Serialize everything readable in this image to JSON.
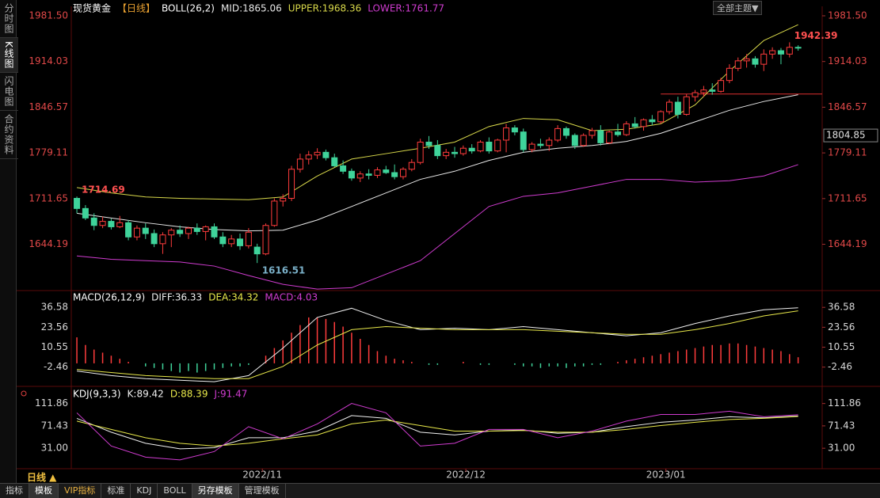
{
  "sidebar": [
    "分时图",
    "K线图",
    "闪电图",
    "合约资料"
  ],
  "top_menu": "全部主题▼",
  "period_button": "日线 ▲",
  "toolbar": [
    "指标",
    "模板",
    "VIP指标",
    "标准",
    "KDJ",
    "BOLL",
    "另存模板",
    "管理模板"
  ],
  "chart_data": [
    {
      "type": "candlestick",
      "title": "现货黄金",
      "period": "【日线】",
      "indicator": "BOLL(26,2)",
      "up_color": "#ff3c3c",
      "down_color": "#3fd39a",
      "xlim": [
        -0.65,
        86.8
      ],
      "ylim": [
        1577,
        1995.5
      ],
      "yticks": [
        {
          "value": 1981.5,
          "label": "1981.50"
        },
        {
          "value": 1914.03,
          "label": "1914.03"
        },
        {
          "value": 1846.57,
          "label": "1846.57"
        },
        {
          "value": 1779.11,
          "label": "1779.11"
        },
        {
          "value": 1711.65,
          "label": "1711.65"
        },
        {
          "value": 1644.19,
          "label": "1644.19"
        }
      ],
      "candles": [
        [
          1712,
          1714.69,
          1690,
          1697
        ],
        [
          1697,
          1702,
          1680,
          1683
        ],
        [
          1683,
          1690,
          1665,
          1672
        ],
        [
          1672,
          1685,
          1668,
          1678
        ],
        [
          1678,
          1682,
          1666,
          1670
        ],
        [
          1670,
          1686,
          1668,
          1676
        ],
        [
          1676,
          1680,
          1650,
          1655
        ],
        [
          1655,
          1672,
          1650,
          1668
        ],
        [
          1668,
          1675,
          1652,
          1660
        ],
        [
          1660,
          1666,
          1640,
          1645
        ],
        [
          1645,
          1662,
          1630,
          1658
        ],
        [
          1658,
          1668,
          1640,
          1665
        ],
        [
          1665,
          1672,
          1655,
          1660
        ],
        [
          1660,
          1670,
          1652,
          1668
        ],
        [
          1668,
          1675,
          1658,
          1663
        ],
        [
          1663,
          1672,
          1650,
          1670
        ],
        [
          1670,
          1675,
          1652,
          1655
        ],
        [
          1655,
          1662,
          1640,
          1645
        ],
        [
          1645,
          1658,
          1640,
          1652
        ],
        [
          1652,
          1660,
          1636,
          1642
        ],
        [
          1642,
          1668,
          1638,
          1662
        ],
        [
          1640,
          1645,
          1616.51,
          1630
        ],
        [
          1630,
          1675,
          1628,
          1672
        ],
        [
          1672,
          1712,
          1670,
          1708
        ],
        [
          1708,
          1718,
          1700,
          1712
        ],
        [
          1712,
          1760,
          1708,
          1755
        ],
        [
          1755,
          1778,
          1750,
          1770
        ],
        [
          1770,
          1782,
          1762,
          1776
        ],
        [
          1776,
          1786,
          1770,
          1780
        ],
        [
          1780,
          1784,
          1768,
          1772
        ],
        [
          1772,
          1778,
          1758,
          1760
        ],
        [
          1760,
          1768,
          1748,
          1752
        ],
        [
          1752,
          1756,
          1738,
          1742
        ],
        [
          1742,
          1752,
          1736,
          1748
        ],
        [
          1748,
          1755,
          1740,
          1746
        ],
        [
          1746,
          1758,
          1742,
          1754
        ],
        [
          1754,
          1760,
          1748,
          1750
        ],
        [
          1750,
          1762,
          1740,
          1744
        ],
        [
          1744,
          1758,
          1740,
          1755
        ],
        [
          1755,
          1770,
          1752,
          1765
        ],
        [
          1765,
          1800,
          1762,
          1795
        ],
        [
          1795,
          1804,
          1785,
          1790
        ],
        [
          1790,
          1798,
          1770,
          1775
        ],
        [
          1775,
          1785,
          1770,
          1780
        ],
        [
          1780,
          1788,
          1772,
          1778
        ],
        [
          1778,
          1790,
          1775,
          1786
        ],
        [
          1786,
          1792,
          1778,
          1782
        ],
        [
          1782,
          1798,
          1780,
          1795
        ],
        [
          1795,
          1802,
          1778,
          1782
        ],
        [
          1782,
          1800,
          1780,
          1798
        ],
        [
          1798,
          1822,
          1780,
          1816
        ],
        [
          1816,
          1820,
          1805,
          1810
        ],
        [
          1810,
          1815,
          1780,
          1784
        ],
        [
          1784,
          1795,
          1780,
          1792
        ],
        [
          1792,
          1800,
          1786,
          1790
        ],
        [
          1790,
          1802,
          1782,
          1798
        ],
        [
          1798,
          1820,
          1795,
          1815
        ],
        [
          1815,
          1818,
          1800,
          1805
        ],
        [
          1805,
          1808,
          1785,
          1790
        ],
        [
          1790,
          1808,
          1788,
          1805
        ],
        [
          1805,
          1816,
          1800,
          1812
        ],
        [
          1812,
          1820,
          1790,
          1794
        ],
        [
          1794,
          1812,
          1792,
          1810
        ],
        [
          1810,
          1822,
          1803,
          1806
        ],
        [
          1806,
          1826,
          1804,
          1822
        ],
        [
          1822,
          1832,
          1815,
          1818
        ],
        [
          1818,
          1830,
          1812,
          1828
        ],
        [
          1828,
          1835,
          1820,
          1825
        ],
        [
          1825,
          1842,
          1822,
          1840
        ],
        [
          1840,
          1858,
          1836,
          1854
        ],
        [
          1854,
          1862,
          1830,
          1836
        ],
        [
          1836,
          1866,
          1834,
          1862
        ],
        [
          1862,
          1872,
          1855,
          1868
        ],
        [
          1868,
          1878,
          1862,
          1872
        ],
        [
          1872,
          1882,
          1865,
          1870
        ],
        [
          1870,
          1890,
          1868,
          1886
        ],
        [
          1886,
          1910,
          1882,
          1904
        ],
        [
          1904,
          1920,
          1900,
          1915
        ],
        [
          1915,
          1925,
          1905,
          1918
        ],
        [
          1918,
          1922,
          1905,
          1910
        ],
        [
          1910,
          1932,
          1900,
          1925
        ],
        [
          1925,
          1935,
          1918,
          1930
        ],
        [
          1930,
          1934,
          1910,
          1925
        ],
        [
          1925,
          1942.39,
          1920,
          1935
        ],
        [
          1935,
          1938,
          1930,
          1934
        ]
      ],
      "series_x": [
        0,
        4,
        8,
        12,
        16,
        20,
        24,
        28,
        32,
        36,
        40,
        44,
        48,
        52,
        56,
        60,
        64,
        68,
        72,
        76,
        80,
        84
      ],
      "series": [
        {
          "name": "MID:1865.06",
          "color": "#e8e8e8",
          "values": [
            1690,
            1683,
            1676,
            1670,
            1666,
            1664,
            1665,
            1680,
            1700,
            1720,
            1740,
            1752,
            1768,
            1780,
            1786,
            1790,
            1796,
            1808,
            1825,
            1842,
            1855,
            1865.06
          ]
        },
        {
          "name": "UPPER:1968.36",
          "color": "#d8d84a",
          "values": [
            1728,
            1720,
            1714,
            1712,
            1711,
            1710,
            1714,
            1745,
            1770,
            1778,
            1786,
            1795,
            1818,
            1830,
            1828,
            1812,
            1814,
            1822,
            1850,
            1900,
            1945,
            1968.36
          ]
        },
        {
          "name": "LOWER:1761.77",
          "color": "#d03cd0",
          "values": [
            1627,
            1622,
            1620,
            1618,
            1612,
            1598,
            1585,
            1578,
            1580,
            1600,
            1620,
            1660,
            1700,
            1715,
            1720,
            1730,
            1740,
            1740,
            1736,
            1738,
            1745,
            1761.77
          ]
        }
      ],
      "annotations": [
        {
          "x": 0,
          "value": 1714.69,
          "color": "#ff5050"
        },
        {
          "x": 21,
          "value": 1616.51,
          "color": "#7ab0c8"
        },
        {
          "x": 83,
          "value": 1942.39,
          "color": "#ff5050"
        }
      ],
      "ref_line": {
        "value": 1866,
        "start": 68,
        "color": "#e03030"
      },
      "cursor_price": 1804.85
    },
    {
      "type": "macd",
      "title": "MACD(26,12,9)",
      "xlim": [
        -0.65,
        86.8
      ],
      "ylim": [
        -14,
        46
      ],
      "yticks": [
        36.58,
        23.56,
        10.55,
        -2.46
      ],
      "series_x": [
        0,
        4,
        8,
        12,
        16,
        20,
        24,
        28,
        32,
        36,
        40,
        44,
        48,
        52,
        56,
        60,
        64,
        68,
        72,
        76,
        80,
        84
      ],
      "series": [
        {
          "name": "DIFF:36.33",
          "color": "#f0f0f0",
          "values": [
            -5,
            -8,
            -10,
            -11,
            -12,
            -8,
            10,
            30,
            36,
            28,
            22,
            23,
            22,
            24,
            22,
            20,
            18,
            20,
            26,
            31,
            35,
            36.33
          ]
        },
        {
          "name": "DEA:34.32",
          "color": "#e8e84a",
          "values": [
            -4,
            -6,
            -8,
            -9,
            -10,
            -10,
            -2,
            12,
            22,
            24,
            23,
            22,
            22,
            22,
            21,
            20,
            19,
            19,
            22,
            26,
            31,
            34.32
          ]
        }
      ],
      "bars": {
        "name": "MACD:4.03",
        "color": "#d03cd0",
        "up_color": "#ff3c3c",
        "down_color": "#3fd39a",
        "values": [
          17,
          12,
          9,
          7,
          5,
          3,
          1,
          0,
          -2,
          -3,
          -4,
          -5,
          -6,
          -5,
          -6,
          -5,
          -4,
          -3,
          -2,
          -2,
          -1,
          0,
          5,
          10,
          15,
          20,
          25,
          30,
          30,
          29,
          27,
          24,
          20,
          16,
          12,
          8,
          5,
          3,
          2,
          1,
          0,
          -1,
          -1,
          0,
          0,
          1,
          0,
          -1,
          -1,
          0,
          0,
          -1,
          -2,
          -2,
          -3,
          -2,
          -2,
          -3,
          -2,
          -2,
          -1,
          -1,
          0,
          1,
          2,
          3,
          4,
          5,
          6,
          7,
          8,
          9,
          10,
          11,
          12,
          12,
          13,
          13,
          12,
          11,
          10,
          9,
          8,
          6,
          4
        ]
      }
    },
    {
      "type": "kdj",
      "title": "KDJ(9,3,3)",
      "xlim": [
        -0.65,
        86.8
      ],
      "ylim": [
        -6,
        140
      ],
      "yticks": [
        111.86,
        71.43,
        {
          "value": 31,
          "label": "31.00"
        }
      ],
      "xticks": [
        {
          "value": 21.6,
          "label": "2022/11"
        },
        {
          "value": 45.3,
          "label": "2022/12"
        },
        {
          "value": 68.6,
          "label": "2023/01"
        }
      ],
      "series_x": [
        0,
        4,
        8,
        12,
        16,
        20,
        24,
        28,
        32,
        36,
        40,
        44,
        48,
        52,
        56,
        60,
        64,
        68,
        72,
        76,
        80,
        84
      ],
      "series": [
        {
          "name": "K:89.42",
          "color": "#f0f0f0",
          "values": [
            85,
            60,
            40,
            30,
            32,
            50,
            50,
            62,
            90,
            85,
            60,
            55,
            62,
            64,
            58,
            60,
            70,
            78,
            82,
            88,
            86,
            89.42
          ]
        },
        {
          "name": "D:88.39",
          "color": "#e8e84a",
          "values": [
            80,
            65,
            50,
            40,
            35,
            40,
            48,
            55,
            75,
            82,
            72,
            62,
            62,
            63,
            60,
            60,
            65,
            72,
            78,
            83,
            85,
            88.39
          ]
        },
        {
          "name": "J:91.47",
          "color": "#d03cd0",
          "values": [
            95,
            35,
            15,
            10,
            25,
            70,
            48,
            75,
            112,
            95,
            35,
            40,
            65,
            65,
            50,
            62,
            80,
            92,
            92,
            98,
            88,
            91.47
          ]
        }
      ]
    }
  ]
}
